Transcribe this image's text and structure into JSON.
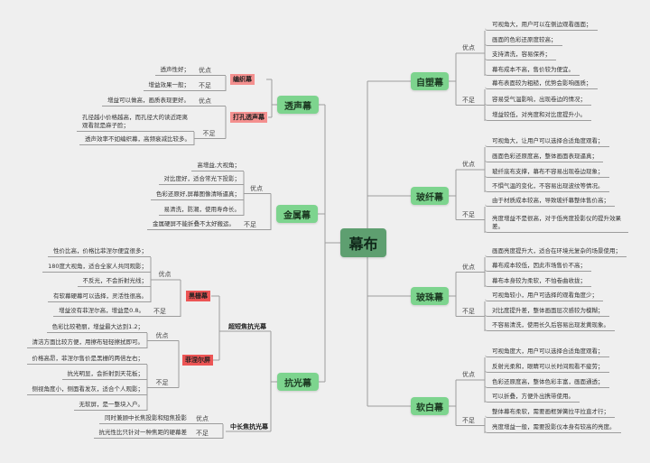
{
  "center": "幕布",
  "right": [
    {
      "name": "自塑幕",
      "groups": [
        {
          "label": "优点",
          "items": [
            "可视角大，用户可以在侧边观看画面；",
            "画面的色彩还原度较高；",
            "支持清洗，容易保养；",
            "幕布成本不高，售价较为便宜。"
          ]
        },
        {
          "label": "不足",
          "items": [
            "幕布表面较为粗糙，优势会影响画质；",
            "容易受气温影响，出现卷边的情况；",
            "增益较低，对亮度和对比度提升小。"
          ]
        }
      ]
    },
    {
      "name": "玻纤幕",
      "groups": [
        {
          "label": "优点",
          "items": [
            "可视角大，让用户可以选择合适角度观看；",
            "画面色彩还原度高，整体画面表现逼真；",
            "玻纤底布支撑，幕布不容易出现卷边现象；",
            "不惧气温的变化，不容易出现波纹等情况。"
          ]
        },
        {
          "label": "不足",
          "items": [
            "由于材质成本较高，导致玻纤幕整体售价高；",
            "亮度增益不是很高，对于低亮度投影仪的提升效果差。"
          ]
        }
      ]
    },
    {
      "name": "玻珠幕",
      "groups": [
        {
          "label": "优点",
          "items": [
            "画面亮度提升大，适合在环境光复杂的场景使用；",
            "幕布成本较低，因此市场售价不高；",
            "幕布本身较为柔软，不怕卷曲收拢；"
          ]
        },
        {
          "label": "不足",
          "items": [
            "可视角较小，用户可选择的观看角度少；",
            "对比度提升差，整体画面层次感较为模糊；",
            "不容易清洗，使用长久后容易出现发黄现象。"
          ]
        }
      ]
    },
    {
      "name": "软白幕",
      "groups": [
        {
          "label": "优点",
          "items": [
            "可视角度大，用户可以选择合适角度观看；",
            "反射光柔和，眼睛可以长时间观看不疲劳；",
            "色彩还原度高，整体色彩丰富，画面通透；",
            "可以折叠，方便外出携带使用。"
          ]
        },
        {
          "label": "不足",
          "items": [
            "整体幕布柔软，需要画框弹簧拉平拉直才行；",
            "亮度增益一般，需要投影仪本身有较高的亮度。"
          ]
        }
      ]
    }
  ],
  "left": [
    {
      "name": "透声幕",
      "subs": [
        {
          "name": "编织幕",
          "groups": [
            {
              "label": "优点",
              "items": [
                "透声性好；"
              ]
            },
            {
              "label": "不足",
              "items": [
                "增益效果一般；"
              ]
            }
          ]
        },
        {
          "name": "打孔透声幕",
          "groups": [
            {
              "label": "优点",
              "items": [
                "增益可以做高，画质表现更好。"
              ]
            },
            {
              "label": "不足",
              "items": [
                "孔径越小价格越高，而孔径大的读近距离观看就是麻子脸；",
                "透声效率不如编织幕，高频衰减比较多。"
              ]
            }
          ]
        }
      ]
    },
    {
      "name": "金属幕",
      "groups": [
        {
          "label": "优点",
          "items": [
            "高增益,大视角；",
            "对比度好，适合常光下投影；",
            "色彩还原好,屏幕图像清晰逼真；",
            "易清洗，防潮，使用寿命长。"
          ]
        },
        {
          "label": "不足",
          "items": [
            "金属硬屏不能折叠不太好搬运。"
          ]
        }
      ]
    },
    {
      "name": "抗光幕",
      "subs": [
        {
          "name": "超短焦抗光幕",
          "subs": [
            {
              "name": "黑栅幕",
              "groups": [
                {
                  "label": "优点",
                  "items": [
                    "性价比高，价格比菲涅尔便宜很多；",
                    "180度大视角，适合全家人共同观影；",
                    "不反光，不会折射光线；",
                    "有软幕硬幕可以选择，灵活性很高。"
                  ]
                },
                {
                  "label": "不足",
                  "items": [
                    "增益没有菲涅尔高，增益是0.8。"
                  ]
                }
              ]
            },
            {
              "name": "菲涅尔屏",
              "groups": [
                {
                  "label": "优点",
                  "items": [
                    "色彩比较艳丽，增益最大达到1.2；",
                    "清洁方面比较方便，用擦布轻轻擦拭即可。"
                  ]
                },
                {
                  "label": "不足",
                  "items": [
                    "价格高昂，菲涅尔售价是黑栅的两倍左右；",
                    "抗光明显，会折射到天花板；",
                    "侧视角度小，侧面看发灰，适合个人观影；",
                    "无软屏，是一整块入户。"
                  ]
                }
              ]
            }
          ]
        },
        {
          "name": "中长焦抗光幕",
          "groups": [
            {
              "label": "优点",
              "items": [
                "同时兼顾中长焦投影和短焦投影"
              ]
            },
            {
              "label": "不足",
              "items": [
                "抗光性比只针对一种焦距的硬幕差"
              ]
            }
          ]
        }
      ]
    }
  ],
  "colors": {
    "node": "#7dd48e",
    "center": "#5e9f70",
    "sub_pink": "#f4908f",
    "sub_red": "#ec5555",
    "line": "#9c9c9c",
    "background": "#efefef"
  }
}
